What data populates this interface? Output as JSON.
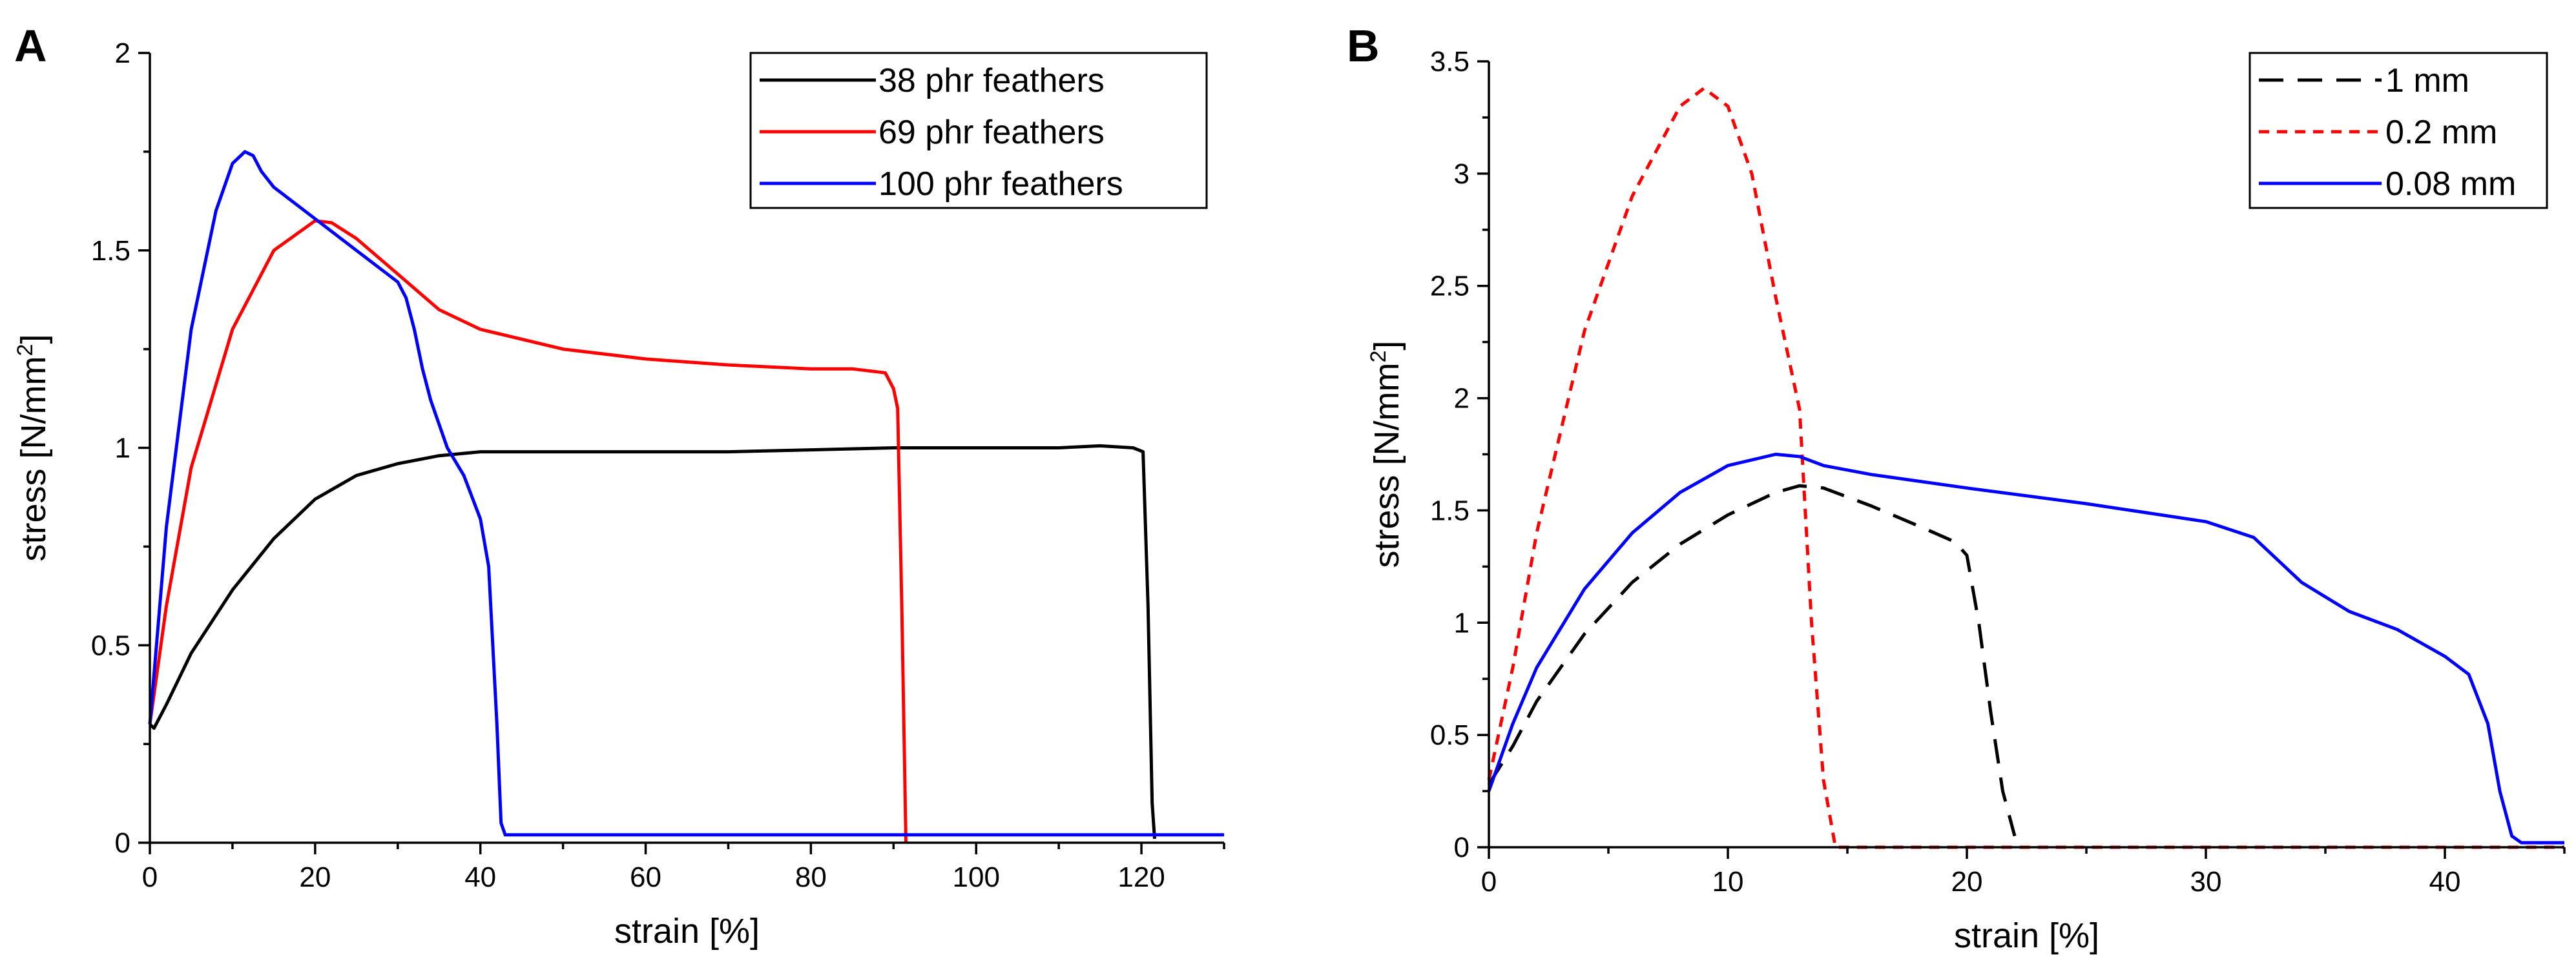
{
  "chart_data": [
    {
      "panel": "A",
      "type": "line",
      "xlabel": "strain [%]",
      "ylabel_main": "stress [N/mm",
      "ylabel_sup": "2",
      "ylabel_close": "]",
      "xlim": [
        0,
        130
      ],
      "ylim": [
        0,
        2
      ],
      "xticks": [
        0,
        20,
        40,
        60,
        80,
        100,
        120
      ],
      "xtick_labels": [
        "0",
        "20",
        "40",
        "60",
        "80",
        "100",
        "120"
      ],
      "yticks": [
        0,
        0.5,
        1,
        1.5,
        2
      ],
      "ytick_labels": [
        "0",
        "0.5",
        "1",
        "1.5",
        "2"
      ],
      "legend_position": "top-right",
      "series": [
        {
          "name": "38 phr feathers",
          "color": "#000000",
          "dash": "solid",
          "x": [
            0,
            0.5,
            2,
            5,
            10,
            15,
            20,
            25,
            30,
            35,
            40,
            45,
            50,
            60,
            70,
            80,
            90,
            100,
            110,
            115,
            119,
            120.2,
            120.8,
            121.3,
            121.6
          ],
          "y": [
            0.3,
            0.29,
            0.35,
            0.48,
            0.64,
            0.77,
            0.87,
            0.93,
            0.96,
            0.98,
            0.99,
            0.99,
            0.99,
            0.99,
            0.99,
            0.995,
            1.0,
            1.0,
            1.0,
            1.005,
            1.0,
            0.99,
            0.6,
            0.1,
            0.01
          ]
        },
        {
          "name": "69 phr feathers",
          "color": "#ff0000",
          "dash": "solid",
          "x": [
            0,
            2,
            5,
            10,
            15,
            20,
            22,
            25,
            30,
            35,
            40,
            50,
            60,
            70,
            80,
            85,
            89,
            90,
            90.5,
            91,
            91.5
          ],
          "y": [
            0.3,
            0.6,
            0.95,
            1.3,
            1.5,
            1.575,
            1.57,
            1.53,
            1.44,
            1.35,
            1.3,
            1.25,
            1.225,
            1.21,
            1.2,
            1.2,
            1.19,
            1.15,
            1.1,
            0.6,
            0.0
          ]
        },
        {
          "name": "100 phr feathers",
          "color": "#0000ff",
          "dash": "solid",
          "x": [
            0,
            2,
            5,
            8,
            10,
            11.5,
            12.5,
            13.5,
            15,
            20,
            25,
            30,
            31,
            32,
            33,
            34,
            35,
            36,
            38,
            40,
            41,
            42,
            42.5,
            43,
            50,
            60,
            70,
            80,
            90,
            100,
            110,
            120,
            130
          ],
          "y": [
            0.3,
            0.8,
            1.3,
            1.6,
            1.72,
            1.75,
            1.74,
            1.7,
            1.66,
            1.58,
            1.5,
            1.42,
            1.38,
            1.3,
            1.2,
            1.12,
            1.06,
            1.0,
            0.93,
            0.82,
            0.7,
            0.3,
            0.05,
            0.02,
            0.02,
            0.02,
            0.02,
            0.02,
            0.02,
            0.02,
            0.02,
            0.02,
            0.02
          ]
        }
      ]
    },
    {
      "panel": "B",
      "type": "line",
      "xlabel": "strain [%]",
      "ylabel_main": "stress [N/mm",
      "ylabel_sup": "2",
      "ylabel_close": "]",
      "xlim": [
        0,
        45
      ],
      "ylim": [
        0,
        3.5
      ],
      "xticks": [
        0,
        10,
        20,
        30,
        40
      ],
      "xtick_labels": [
        "0",
        "10",
        "20",
        "30",
        "40"
      ],
      "yticks": [
        0,
        0.5,
        1,
        1.5,
        2,
        2.5,
        3,
        3.5
      ],
      "ytick_labels": [
        "0",
        "0.5",
        "1",
        "1.5",
        "2",
        "2.5",
        "3",
        "3.5"
      ],
      "legend_position": "top-right",
      "series": [
        {
          "name": "1 mm",
          "color": "#000000",
          "dash": "long-dash",
          "x": [
            0,
            1,
            2,
            4,
            6,
            8,
            10,
            12,
            13,
            14,
            16,
            18,
            19.5,
            20,
            20.5,
            21,
            21.5,
            22
          ],
          "y": [
            0.28,
            0.45,
            0.65,
            0.95,
            1.18,
            1.35,
            1.48,
            1.58,
            1.61,
            1.6,
            1.52,
            1.43,
            1.36,
            1.3,
            1.0,
            0.6,
            0.25,
            0.05
          ]
        },
        {
          "name": "0.2 mm",
          "color": "#ff0000",
          "dash": "short-dash",
          "x": [
            0,
            1,
            2,
            4,
            6,
            8,
            9,
            10,
            11,
            12,
            12.5,
            13,
            13.5,
            14,
            14.5,
            15,
            20,
            30,
            40,
            45
          ],
          "y": [
            0.3,
            0.8,
            1.4,
            2.3,
            2.9,
            3.3,
            3.38,
            3.3,
            3.0,
            2.45,
            2.2,
            1.95,
            1.0,
            0.3,
            0.0,
            0.0,
            0.0,
            0.0,
            0.0,
            0.0
          ]
        },
        {
          "name": "0.08 mm",
          "color": "#0000ff",
          "dash": "solid",
          "x": [
            0,
            1,
            2,
            4,
            6,
            8,
            10,
            12,
            13,
            14,
            16,
            20,
            25,
            30,
            32,
            33,
            34,
            36,
            38,
            40,
            41,
            41.8,
            42.3,
            42.8,
            43.2,
            45
          ],
          "y": [
            0.25,
            0.55,
            0.8,
            1.15,
            1.4,
            1.58,
            1.7,
            1.75,
            1.74,
            1.7,
            1.66,
            1.6,
            1.53,
            1.45,
            1.38,
            1.28,
            1.18,
            1.05,
            0.97,
            0.85,
            0.77,
            0.55,
            0.25,
            0.05,
            0.02,
            0.02
          ]
        }
      ]
    }
  ]
}
